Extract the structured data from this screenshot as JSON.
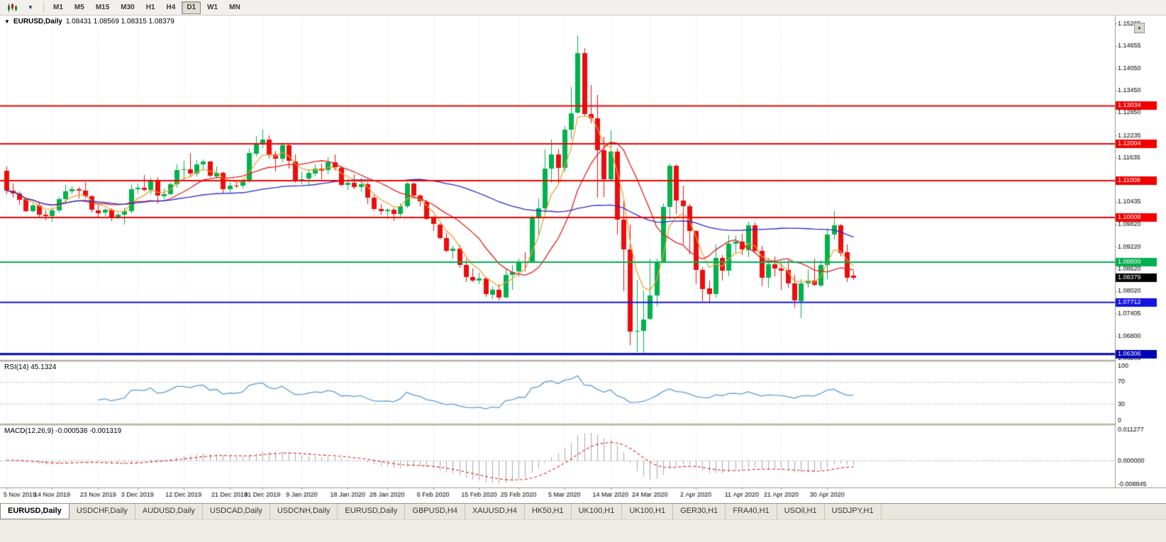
{
  "toolbar": {
    "timeframes": [
      "M1",
      "M5",
      "M15",
      "M30",
      "H1",
      "H4",
      "D1",
      "W1",
      "MN"
    ],
    "active_timeframe": "D1"
  },
  "chart": {
    "symbol": "EURUSD,Daily",
    "ohlc": "1.08431 1.08569 1.08315 1.08379",
    "rsi_label": "RSI(14) 45.1324",
    "macd_label": "MACD(12,26,9) -0.000538 -0.001319",
    "one_click_arrow": "▼",
    "scroll_arrow": "▲"
  },
  "tabs": [
    "EURUSD,Daily",
    "USDCHF,Daily",
    "AUDUSD,Daily",
    "USDCAD,Daily",
    "USDCNH,Daily",
    "EURUSD,Daily",
    "GBPUSD,H4",
    "XAUUSD,H4",
    "HK50,H1",
    "UK100,H1",
    "UK100,H1",
    "GER30,H1",
    "FRA40,H1",
    "USOil,H1",
    "USDJPY,H1"
  ],
  "active_tab_index": 0,
  "chart_data": {
    "type": "candlestick",
    "symbol": "EURUSD",
    "timeframe": "Daily",
    "price_range": {
      "max": 1.1548,
      "min": 1.0615
    },
    "y_ticks": [
      "1.15265",
      "1.14655",
      "1.14050",
      "1.13450",
      "1.12850",
      "1.12235",
      "1.11635",
      "1.10435",
      "1.09820",
      "1.09220",
      "1.08620",
      "1.08020",
      "1.07405",
      "1.06800",
      "1.06205"
    ],
    "x_labels": [
      {
        "label": "5 Nov 2019",
        "i": 0
      },
      {
        "label": "14 Nov 2019",
        "i": 7
      },
      {
        "label": "23 Nov 2019",
        "i": 14
      },
      {
        "label": "3 Dec 2019",
        "i": 20
      },
      {
        "label": "12 Dec 2019",
        "i": 27
      },
      {
        "label": "21 Dec 2019",
        "i": 34
      },
      {
        "label": "31 Dec 2019",
        "i": 39
      },
      {
        "label": "9 Jan 2020",
        "i": 45
      },
      {
        "label": "18 Jan 2020",
        "i": 52
      },
      {
        "label": "28 Jan 2020",
        "i": 58
      },
      {
        "label": "6 Feb 2020",
        "i": 65
      },
      {
        "label": "15 Feb 2020",
        "i": 72
      },
      {
        "label": "25 Feb 2020",
        "i": 78
      },
      {
        "label": "5 Mar 2020",
        "i": 85
      },
      {
        "label": "14 Mar 2020",
        "i": 92
      },
      {
        "label": "24 Mar 2020",
        "i": 98
      },
      {
        "label": "2 Apr 2020",
        "i": 105
      },
      {
        "label": "11 Apr 2020",
        "i": 112
      },
      {
        "label": "21 Apr 2020",
        "i": 118
      },
      {
        "label": "30 Apr 2020",
        "i": 125
      }
    ],
    "horizontal_lines": [
      {
        "price": 1.13034,
        "label": "1.13034",
        "color": "#f00000",
        "width": 2
      },
      {
        "price": 1.12004,
        "label": "1.12004",
        "color": "#f00000",
        "width": 2
      },
      {
        "price": 1.11009,
        "label": "1.11009",
        "color": "#f00000",
        "width": 2
      },
      {
        "price": 1.10008,
        "label": "1.10008",
        "color": "#f00000",
        "width": 2
      },
      {
        "price": 1.088,
        "label": "1.08800",
        "color": "#00b050",
        "width": 2
      },
      {
        "price": 1.07712,
        "label": "1.07712",
        "color": "#1414e0",
        "width": 2
      },
      {
        "price": 1.06306,
        "label": "1.06306",
        "color": "#0000b4",
        "width": 3
      }
    ],
    "current_price": {
      "value": 1.08379,
      "label": "1.08379",
      "color": "#000000"
    },
    "moving_averages": [
      {
        "kind": "ema",
        "period": 5,
        "color": "#f0a030"
      },
      {
        "kind": "sma",
        "period": 12,
        "color": "#e02020"
      },
      {
        "kind": "sma",
        "period": 45,
        "color": "#2828c8"
      }
    ],
    "rsi": {
      "period": 14,
      "value": 45.1324,
      "levels": [
        70,
        30
      ],
      "scale_labels": [
        "100",
        "70",
        "30",
        "0"
      ],
      "color": "#5a9bd5",
      "range": [
        0,
        100
      ]
    },
    "macd": {
      "fast": 12,
      "slow": 26,
      "signal": 9,
      "main_value": -0.000538,
      "signal_value": -0.001319,
      "range": [
        -0.008845,
        0.011277
      ],
      "scale_labels": [
        "0.011277",
        "0.000000",
        "-0.008845"
      ],
      "hist_color": "#a8a8a8",
      "signal_color": "#e02020"
    },
    "colors": {
      "up": "#00b24c",
      "down": "#ec0d0d",
      "grid": "#dcdcdc",
      "bg": "#ffffff",
      "axis_text": "#000000",
      "panel_split": "#d4d0c8"
    },
    "candles": [
      [
        1.1127,
        1.1139,
        1.1064,
        1.1074
      ],
      [
        1.1074,
        1.1093,
        1.1054,
        1.1067
      ],
      [
        1.1067,
        1.1071,
        1.1035,
        1.105
      ],
      [
        1.105,
        1.1055,
        1.1016,
        1.1018
      ],
      [
        1.1018,
        1.104,
        1.1016,
        1.1034
      ],
      [
        1.1034,
        1.1043,
        1.1002,
        1.1009
      ],
      [
        1.1009,
        1.1021,
        1.0995,
        1.1006
      ],
      [
        1.1006,
        1.1027,
        1.0989,
        1.1021
      ],
      [
        1.1021,
        1.1056,
        1.1014,
        1.1051
      ],
      [
        1.1051,
        1.109,
        1.1041,
        1.1072
      ],
      [
        1.1072,
        1.1085,
        1.1063,
        1.1078
      ],
      [
        1.1078,
        1.1083,
        1.1052,
        1.1074
      ],
      [
        1.1074,
        1.1097,
        1.1052,
        1.1058
      ],
      [
        1.1058,
        1.1062,
        1.1014,
        1.1021
      ],
      [
        1.1021,
        1.1033,
        1.1003,
        1.1014
      ],
      [
        1.1014,
        1.1026,
        1.1005,
        1.1022
      ],
      [
        1.1022,
        1.1026,
        1.0992,
        1.1001
      ],
      [
        1.1001,
        1.1015,
        1.0995,
        1.1009
      ],
      [
        1.1009,
        1.1028,
        1.0981,
        1.1018
      ],
      [
        1.1018,
        1.109,
        1.1013,
        1.1078
      ],
      [
        1.1078,
        1.1093,
        1.1066,
        1.1082
      ],
      [
        1.1082,
        1.1116,
        1.1072,
        1.1077
      ],
      [
        1.1077,
        1.1109,
        1.1065,
        1.1103
      ],
      [
        1.1103,
        1.111,
        1.1039,
        1.106
      ],
      [
        1.106,
        1.108,
        1.1052,
        1.1065
      ],
      [
        1.1065,
        1.1096,
        1.1062,
        1.1092
      ],
      [
        1.1092,
        1.1144,
        1.108,
        1.113
      ],
      [
        1.113,
        1.1154,
        1.1102,
        1.1131
      ],
      [
        1.1131,
        1.1175,
        1.111,
        1.112
      ],
      [
        1.112,
        1.1156,
        1.1112,
        1.1145
      ],
      [
        1.1145,
        1.1158,
        1.1128,
        1.1152
      ],
      [
        1.1152,
        1.1155,
        1.111,
        1.1113
      ],
      [
        1.1113,
        1.1139,
        1.1106,
        1.1122
      ],
      [
        1.1122,
        1.1126,
        1.1066,
        1.1078
      ],
      [
        1.1078,
        1.1096,
        1.1069,
        1.1088
      ],
      [
        1.1088,
        1.1094,
        1.1081,
        1.1086
      ],
      [
        1.1086,
        1.1107,
        1.108,
        1.1098
      ],
      [
        1.1098,
        1.1188,
        1.1096,
        1.1175
      ],
      [
        1.1175,
        1.1221,
        1.1165,
        1.1199
      ],
      [
        1.1199,
        1.1239,
        1.119,
        1.1212
      ],
      [
        1.1212,
        1.1224,
        1.116,
        1.1172
      ],
      [
        1.1172,
        1.1181,
        1.1125,
        1.116
      ],
      [
        1.116,
        1.1205,
        1.1152,
        1.1196
      ],
      [
        1.1196,
        1.1199,
        1.1133,
        1.1153
      ],
      [
        1.1153,
        1.1171,
        1.1095,
        1.1104
      ],
      [
        1.1104,
        1.1126,
        1.1092,
        1.1105
      ],
      [
        1.1105,
        1.1131,
        1.1084,
        1.1121
      ],
      [
        1.1121,
        1.1145,
        1.1112,
        1.1134
      ],
      [
        1.1134,
        1.1146,
        1.1104,
        1.1128
      ],
      [
        1.1128,
        1.1164,
        1.1118,
        1.115
      ],
      [
        1.115,
        1.1172,
        1.1128,
        1.1136
      ],
      [
        1.1136,
        1.1141,
        1.1085,
        1.109
      ],
      [
        1.109,
        1.1106,
        1.1076,
        1.1095
      ],
      [
        1.1095,
        1.1118,
        1.1077,
        1.1084
      ],
      [
        1.1084,
        1.1108,
        1.107,
        1.1092
      ],
      [
        1.1092,
        1.1096,
        1.1036,
        1.1055
      ],
      [
        1.1055,
        1.1062,
        1.102,
        1.1024
      ],
      [
        1.1024,
        1.1038,
        1.101,
        1.1019
      ],
      [
        1.1019,
        1.1026,
        1.0998,
        1.1022
      ],
      [
        1.1022,
        1.1028,
        1.0992,
        1.101
      ],
      [
        1.101,
        1.1039,
        1.1001,
        1.1032
      ],
      [
        1.1032,
        1.1096,
        1.1025,
        1.1093
      ],
      [
        1.1093,
        1.1095,
        1.1052,
        1.106
      ],
      [
        1.106,
        1.1065,
        1.1033,
        1.1044
      ],
      [
        1.1044,
        1.1048,
        1.0994,
        1.0998
      ],
      [
        1.0998,
        1.1006,
        1.0963,
        1.0982
      ],
      [
        1.0982,
        1.0986,
        1.0941,
        1.0945
      ],
      [
        1.0945,
        1.0958,
        1.0906,
        1.0911
      ],
      [
        1.0911,
        1.0925,
        1.0891,
        1.0917
      ],
      [
        1.0917,
        1.0926,
        1.0865,
        1.0872
      ],
      [
        1.0872,
        1.089,
        1.0827,
        1.084
      ],
      [
        1.084,
        1.0862,
        1.0826,
        1.083
      ],
      [
        1.083,
        1.0851,
        1.0821,
        1.0835
      ],
      [
        1.0835,
        1.0839,
        1.0786,
        1.0792
      ],
      [
        1.0792,
        1.0815,
        1.0781,
        1.0806
      ],
      [
        1.0806,
        1.0821,
        1.0777,
        1.0785
      ],
      [
        1.0785,
        1.0862,
        1.0783,
        1.0846
      ],
      [
        1.0846,
        1.0872,
        1.0805,
        1.0854
      ],
      [
        1.0854,
        1.089,
        1.084,
        1.0881
      ],
      [
        1.0881,
        1.0907,
        1.0855,
        1.088
      ],
      [
        1.088,
        1.1006,
        1.0879,
        1.0999
      ],
      [
        1.0999,
        1.1053,
        1.0951,
        1.1026
      ],
      [
        1.1026,
        1.1185,
        1.1012,
        1.1134
      ],
      [
        1.1134,
        1.1213,
        1.1095,
        1.1172
      ],
      [
        1.1172,
        1.1188,
        1.1095,
        1.1135
      ],
      [
        1.1135,
        1.1249,
        1.1124,
        1.1239
      ],
      [
        1.1239,
        1.1355,
        1.1212,
        1.1284
      ],
      [
        1.1284,
        1.1495,
        1.1282,
        1.1446
      ],
      [
        1.1446,
        1.146,
        1.1273,
        1.1281
      ],
      [
        1.1281,
        1.1359,
        1.1255,
        1.127
      ],
      [
        1.127,
        1.1333,
        1.1054,
        1.1184
      ],
      [
        1.1184,
        1.1219,
        1.1055,
        1.1106
      ],
      [
        1.1106,
        1.1237,
        1.1101,
        1.118
      ],
      [
        1.118,
        1.1189,
        1.0955,
        1.0995
      ],
      [
        1.0995,
        1.1046,
        1.0801,
        1.0915
      ],
      [
        1.0915,
        1.0982,
        1.0656,
        1.0692
      ],
      [
        1.0692,
        1.0831,
        1.0636,
        1.0694
      ],
      [
        1.0694,
        1.0804,
        1.0635,
        1.0725
      ],
      [
        1.0725,
        1.0888,
        1.0723,
        1.0789
      ],
      [
        1.0789,
        1.089,
        1.0762,
        1.0882
      ],
      [
        1.0882,
        1.104,
        1.0879,
        1.103
      ],
      [
        1.103,
        1.1147,
        1.0996,
        1.1141
      ],
      [
        1.1141,
        1.1144,
        1.101,
        1.1046
      ],
      [
        1.1046,
        1.1087,
        1.0927,
        1.1031
      ],
      [
        1.1031,
        1.1038,
        1.0902,
        1.0964
      ],
      [
        1.0964,
        1.0966,
        1.082,
        1.0859
      ],
      [
        1.0859,
        1.0866,
        1.0773,
        1.0808
      ],
      [
        1.0808,
        1.083,
        1.0768,
        1.0793
      ],
      [
        1.0793,
        1.0927,
        1.0783,
        1.0891
      ],
      [
        1.0891,
        1.0899,
        1.083,
        1.0857
      ],
      [
        1.0857,
        1.0952,
        1.084,
        1.0929
      ],
      [
        1.0929,
        1.0953,
        1.0905,
        1.0935
      ],
      [
        1.0935,
        1.0957,
        1.0899,
        1.0913
      ],
      [
        1.0913,
        1.099,
        1.0894,
        1.098
      ],
      [
        1.098,
        1.0987,
        1.0902,
        1.091
      ],
      [
        1.091,
        1.0925,
        1.0816,
        1.0838
      ],
      [
        1.0838,
        1.0892,
        1.0812,
        1.0875
      ],
      [
        1.0875,
        1.0896,
        1.0843,
        1.0863
      ],
      [
        1.0863,
        1.0878,
        1.0805,
        1.0858
      ],
      [
        1.0858,
        1.0885,
        1.081,
        1.0822
      ],
      [
        1.0822,
        1.0845,
        1.0756,
        1.0775
      ],
      [
        1.0775,
        1.0833,
        1.0727,
        1.0823
      ],
      [
        1.0823,
        1.0861,
        1.0811,
        1.083
      ],
      [
        1.083,
        1.0889,
        1.0814,
        1.0818
      ],
      [
        1.0818,
        1.0885,
        1.0812,
        1.0873
      ],
      [
        1.0873,
        1.0972,
        1.0833,
        1.0955
      ],
      [
        1.0955,
        1.1019,
        1.0942,
        1.098
      ],
      [
        1.098,
        1.0984,
        1.0896,
        1.0906
      ],
      [
        1.0906,
        1.0927,
        1.0826,
        1.0837
      ],
      [
        1.08431,
        1.08569,
        1.08315,
        1.08379
      ]
    ]
  }
}
